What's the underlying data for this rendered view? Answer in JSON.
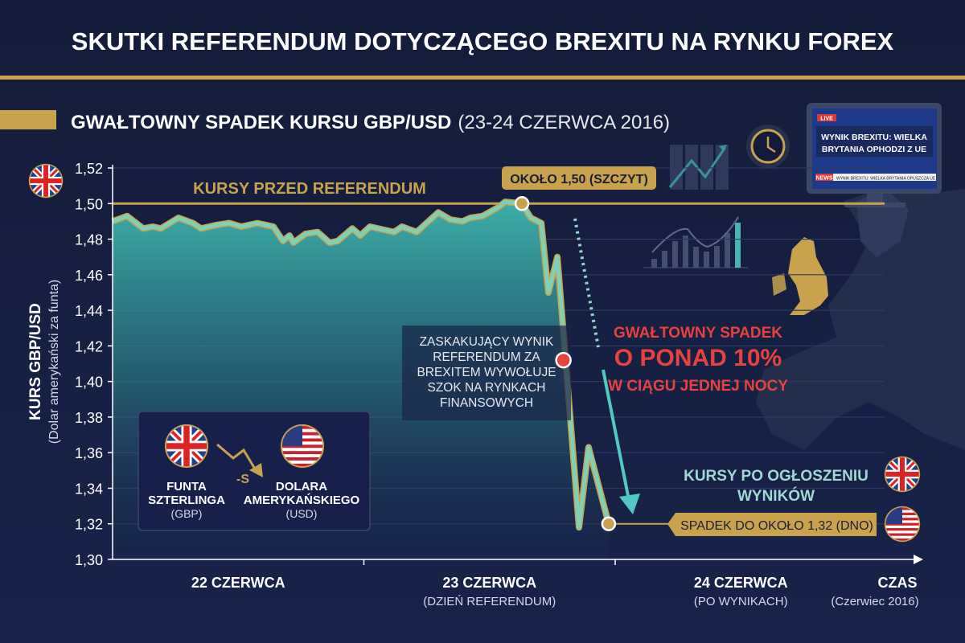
{
  "title": "SKUTKI REFERENDUM DOTYCZĄCEGO BREXITU NA RYNKU FOREX",
  "section": {
    "heading": "GWAŁTOWNY SPADEK KURSU GBP/USD",
    "period": "(23-24 CZERWCA 2016)"
  },
  "colors": {
    "background": "#131b38",
    "gold": "#c9a24e",
    "teal": "#3fb7b0",
    "line": "#7fd0b4",
    "red": "#e8423f",
    "label_teal": "#9fd9cf"
  },
  "chart_data": {
    "type": "area",
    "ylabel": "KURS GBP/USD",
    "ylabel_sub": "(Dolar amerykański za funta)",
    "xlabel": "CZAS",
    "xlabel_sub": "(Czerwiec 2016)",
    "ylim": [
      1.3,
      1.52
    ],
    "yticks": [
      "1,30",
      "1,32",
      "1,34",
      "1,36",
      "1,38",
      "1,40",
      "1,42",
      "1,44",
      "1,46",
      "1,48",
      "1,50",
      "1,52"
    ],
    "xlim": [
      22.0,
      25.2
    ],
    "xticks": [
      {
        "label": "22 CZERWCA",
        "sub": ""
      },
      {
        "label": "23 CZERWCA",
        "sub": "(DZIEŃ REFERENDUM)"
      },
      {
        "label": "24 CZERWCA",
        "sub": "(PO WYNIKACH)"
      }
    ],
    "grid": true,
    "x": [
      22.0,
      22.058,
      22.122,
      22.16,
      22.192,
      22.262,
      22.32,
      22.352,
      22.416,
      22.464,
      22.512,
      22.576,
      22.608,
      22.64,
      22.678,
      22.704,
      22.72,
      22.768,
      22.816,
      22.864,
      22.896,
      22.954,
      22.986,
      23.024,
      23.088,
      23.12,
      23.152,
      23.21,
      23.296,
      23.344,
      23.392,
      23.424,
      23.472,
      23.536,
      23.562,
      23.629,
      23.664,
      23.706,
      23.734,
      23.77,
      23.856,
      23.894,
      23.974
    ],
    "y": [
      1.49,
      1.493,
      1.486,
      1.487,
      1.486,
      1.492,
      1.489,
      1.486,
      1.488,
      1.489,
      1.487,
      1.489,
      1.488,
      1.487,
      1.479,
      1.482,
      1.478,
      1.483,
      1.484,
      1.478,
      1.479,
      1.486,
      1.482,
      1.487,
      1.485,
      1.484,
      1.487,
      1.484,
      1.495,
      1.491,
      1.49,
      1.492,
      1.493,
      1.498,
      1.501,
      1.5,
      1.492,
      1.489,
      1.45,
      1.47,
      1.318,
      1.363,
      1.32
    ],
    "reference_lines": [
      {
        "value": 1.5,
        "label": "KURSY PRZED REFERENDUM"
      },
      {
        "value": 1.32,
        "label": "KURSY PO OGŁOSZENIU WYNIKÓW"
      }
    ],
    "annotations": {
      "peak": {
        "x": 23.629,
        "y": 1.5,
        "label": "OKOŁO 1,50 (SZCZYT)"
      },
      "bottom": {
        "x": 23.974,
        "y": 1.32,
        "label": "SPADEK DO OKOŁO 1,32 (DNO)"
      },
      "drop_marker": {
        "x": 23.97,
        "y": 1.412
      },
      "shock_note": [
        "ZASKAKUJĄCY WYNIK",
        "REFERENDUM ZA",
        "BREXITEM WYWOŁUJE",
        "SZOK NA RYNKACH",
        "FINANSOWYCH"
      ],
      "drop_note": {
        "line1": "GWAŁTOWNY SPADEK",
        "line2": "O PONAD 10%",
        "line3": "W CIĄGU JEDNEJ NOCY"
      },
      "after_label": [
        "KURSY PO OGŁOSZENIU",
        "WYNIKÓW"
      ]
    }
  },
  "legend": {
    "from": {
      "name": "FUNTA",
      "name2": "SZTERLINGA",
      "code": "(GBP)",
      "icon": "uk-flag-icon"
    },
    "arrow_label": "-S",
    "to": {
      "name": "DOLARA",
      "name2": "AMERYKAŃSKIEGO",
      "code": "(USD)",
      "icon": "us-flag-icon"
    }
  },
  "tv": {
    "badge": "LIVE",
    "headline1": "WYNIK BREXITU: WIELKA",
    "headline2": "BRYTANIA OPHODZI Z UE",
    "news": "NEWS",
    "ticker": "WYNIK BREXITU: WIELKA BRYTANIA OPUSZCZA UE"
  }
}
